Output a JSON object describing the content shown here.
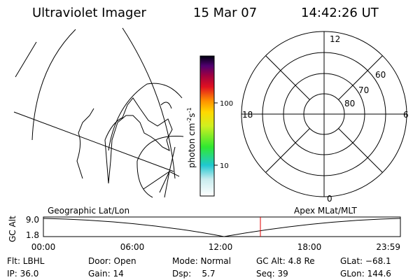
{
  "header": {
    "instrument": "Ultraviolet Imager",
    "date": "15 Mar 07",
    "time": "14:42:26 UT"
  },
  "colorbar": {
    "label_parts": [
      "photon cm",
      "-2",
      "s",
      "-1"
    ],
    "tick_labels": [
      "100",
      "10"
    ]
  },
  "polar": {
    "labels": [
      "12",
      "0",
      "18",
      "6",
      "60",
      "70",
      "80"
    ]
  },
  "strip": {
    "left_title": "Geographic Lat/Lon",
    "right_title": "Apex MLat/MLT",
    "y_label": "GC Alt",
    "y_tick_labels": [
      "9.0",
      "1.8"
    ],
    "x_tick_labels": [
      "00:00",
      "06:00",
      "12:00",
      "18:00",
      "23:59"
    ]
  },
  "status": {
    "rows": [
      [
        "Flt: LBHL",
        "Door: Open",
        "Mode: Normal",
        "GC Alt: 4.8 Re",
        "GLat: −68.1"
      ],
      [
        "IP: 36.0",
        "Gain: 14",
        "Dsp:    5.7",
        "Seq: 39",
        "GLon: 144.6"
      ]
    ]
  }
}
